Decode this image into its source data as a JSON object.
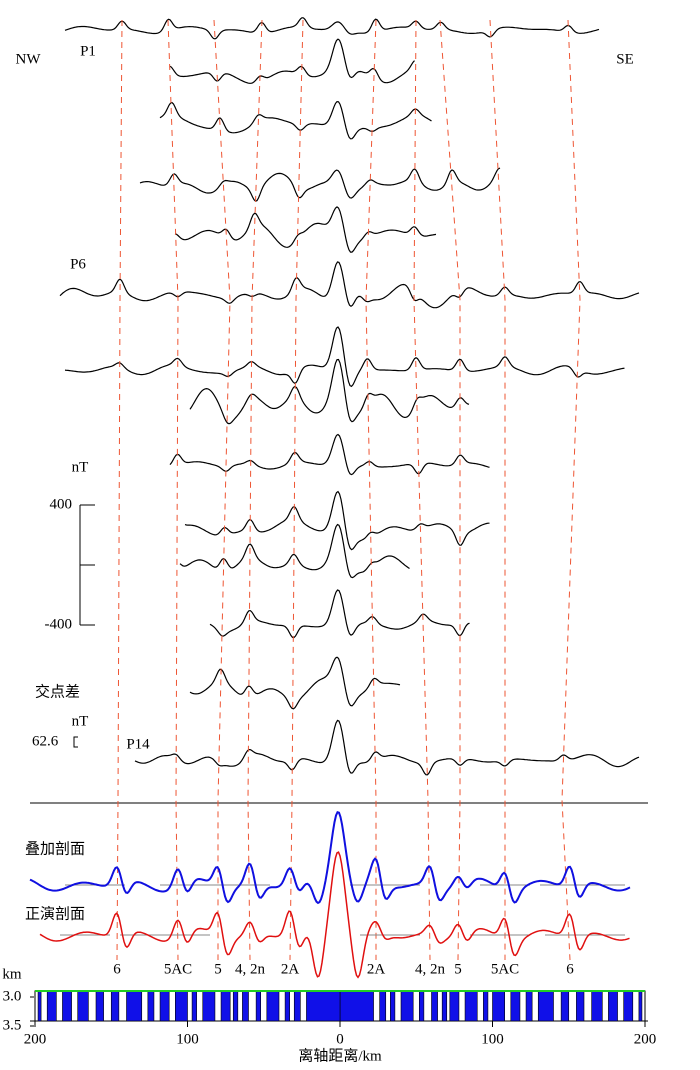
{
  "figure": {
    "orientation": {
      "left": "NW",
      "right": "SE"
    },
    "profiles": [
      {
        "label": "P1"
      },
      {
        "label": "P6"
      },
      {
        "label": "P14"
      }
    ],
    "scale_bar": {
      "unit": "nT",
      "ticks": [
        400,
        -400
      ]
    },
    "crossover": {
      "title": "交点差",
      "unit": "nT",
      "value": 62.6
    },
    "sections": {
      "stacked": "叠加剖面",
      "forward": "正演剖面"
    },
    "anomalies": [
      "6",
      "5AC",
      "5",
      "4, 2n",
      "2A",
      "2A",
      "4, 2n",
      "5",
      "5AC",
      "6"
    ],
    "depth": {
      "unit": "km",
      "ticks": [
        3.0,
        3.5
      ],
      "tick_labels": [
        "3.0",
        "3.5"
      ]
    },
    "x_axis": {
      "title": "离轴距离/km",
      "xlim": [
        -200,
        200
      ],
      "xticks": [
        {
          "value": -200,
          "label": "200"
        },
        {
          "value": -100,
          "label": "100"
        },
        0,
        100,
        {
          "value": 200,
          "label": "200"
        }
      ]
    }
  }
}
